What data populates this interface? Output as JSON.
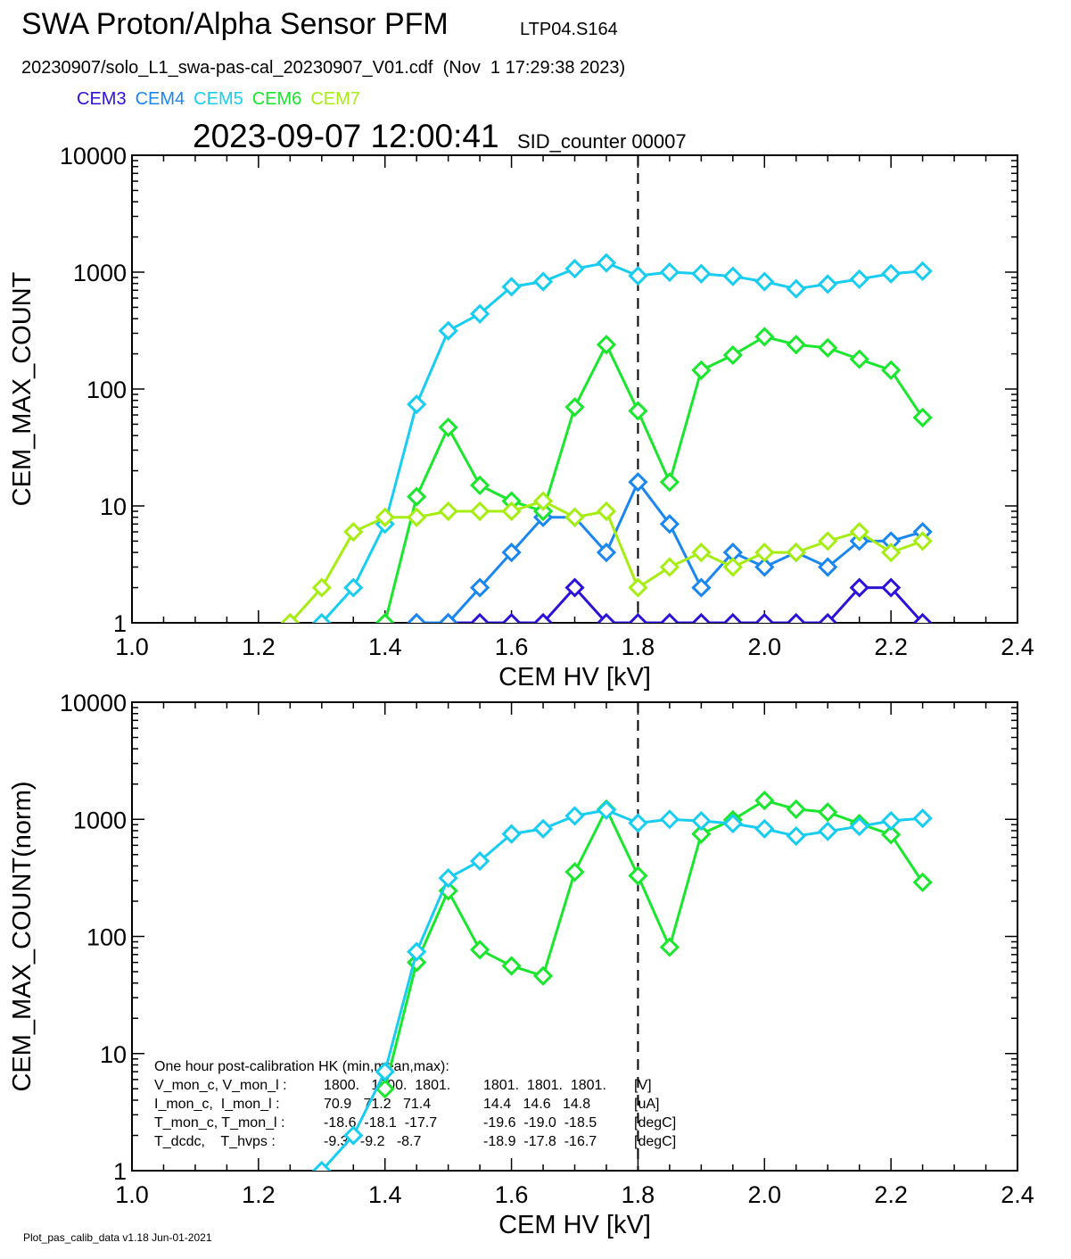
{
  "header": {
    "title": "SWA Proton/Alpha Sensor PFM",
    "subtitle": "LTP04.S164",
    "file_line": "20230907/solo_L1_swa-pas-cal_20230907_V01.cdf  (Nov  1 17:29:38 2023)",
    "timestamp": "2023-09-07 12:00:41",
    "sid": "SID_counter 00007"
  },
  "legend": [
    {
      "label": "CEM3",
      "color": "#2b12d8"
    },
    {
      "label": "CEM4",
      "color": "#1a86f0"
    },
    {
      "label": "CEM5",
      "color": "#18cdf0"
    },
    {
      "label": "CEM6",
      "color": "#19e62c"
    },
    {
      "label": "CEM7",
      "color": "#a6ee12"
    }
  ],
  "footer": "Plot_pas_calib_data v1.18 Jun-01-2021",
  "chart_data": [
    {
      "type": "line",
      "xlabel": "CEM HV [kV]",
      "ylabel": "CEM_MAX_COUNT",
      "xlim": [
        1.0,
        2.4
      ],
      "ylim": [
        1,
        10000
      ],
      "yscale": "log",
      "xticks": [
        "1.0",
        "1.2",
        "1.4",
        "1.6",
        "1.8",
        "2.0",
        "2.2",
        "2.4"
      ],
      "yticks": [
        "1",
        "10",
        "100",
        "1000",
        "10000"
      ],
      "vline": 1.8,
      "marker": "diamond",
      "series": [
        {
          "name": "CEM3",
          "color": "#2b12d8",
          "x": [
            1.45,
            1.5,
            1.55,
            1.6,
            1.65,
            1.7,
            1.75,
            1.8,
            1.85,
            1.9,
            1.95,
            2.0,
            2.05,
            2.1,
            2.15,
            2.2,
            2.25
          ],
          "y": [
            1,
            1,
            1,
            1,
            1,
            2,
            1,
            1,
            1,
            1,
            1,
            1,
            1,
            1,
            2,
            2,
            1
          ]
        },
        {
          "name": "CEM4",
          "color": "#1a86f0",
          "x": [
            1.45,
            1.5,
            1.55,
            1.6,
            1.65,
            1.7,
            1.75,
            1.8,
            1.85,
            1.9,
            1.95,
            2.0,
            2.05,
            2.1,
            2.15,
            2.2,
            2.25
          ],
          "y": [
            1,
            1,
            2,
            4,
            8,
            8,
            4,
            16,
            7,
            2,
            4,
            3,
            4,
            3,
            5,
            5,
            6
          ]
        },
        {
          "name": "CEM5",
          "color": "#18cdf0",
          "x": [
            1.3,
            1.35,
            1.4,
            1.45,
            1.5,
            1.55,
            1.6,
            1.65,
            1.7,
            1.75,
            1.8,
            1.85,
            1.9,
            1.95,
            2.0,
            2.05,
            2.1,
            2.15,
            2.2,
            2.25
          ],
          "y": [
            1,
            2,
            7,
            74,
            315,
            440,
            750,
            830,
            1070,
            1200,
            930,
            1000,
            970,
            920,
            830,
            720,
            790,
            870,
            970,
            1020
          ]
        },
        {
          "name": "CEM6",
          "color": "#19e62c",
          "x": [
            1.4,
            1.45,
            1.5,
            1.55,
            1.6,
            1.65,
            1.7,
            1.75,
            1.8,
            1.85,
            1.9,
            1.95,
            2.0,
            2.05,
            2.1,
            2.15,
            2.2,
            2.25
          ],
          "y": [
            1,
            12,
            47,
            15,
            11,
            9,
            70,
            240,
            65,
            16,
            145,
            195,
            280,
            240,
            225,
            180,
            145,
            57
          ]
        },
        {
          "name": "CEM7",
          "color": "#a6ee12",
          "x": [
            1.25,
            1.3,
            1.35,
            1.4,
            1.45,
            1.5,
            1.55,
            1.6,
            1.65,
            1.7,
            1.75,
            1.8,
            1.85,
            1.9,
            1.95,
            2.0,
            2.05,
            2.1,
            2.15,
            2.2,
            2.25
          ],
          "y": [
            1,
            2,
            6,
            8,
            8,
            9,
            9,
            9,
            11,
            8,
            9,
            2,
            3,
            4,
            3,
            4,
            4,
            5,
            6,
            4,
            5
          ]
        }
      ]
    },
    {
      "type": "line",
      "xlabel": "CEM HV [kV]",
      "ylabel": "CEM_MAX_COUNT(norm)",
      "xlim": [
        1.0,
        2.4
      ],
      "ylim": [
        1,
        10000
      ],
      "yscale": "log",
      "xticks": [
        "1.0",
        "1.2",
        "1.4",
        "1.6",
        "1.8",
        "2.0",
        "2.2",
        "2.4"
      ],
      "yticks": [
        "1",
        "10",
        "100",
        "1000",
        "10000"
      ],
      "vline": 1.8,
      "marker": "diamond",
      "series": [
        {
          "name": "CEM6",
          "color": "#19e62c",
          "x": [
            1.4,
            1.45,
            1.5,
            1.55,
            1.6,
            1.65,
            1.7,
            1.75,
            1.8,
            1.85,
            1.9,
            1.95,
            2.0,
            2.05,
            2.1,
            2.15,
            2.2,
            2.25
          ],
          "y": [
            5,
            60,
            245,
            77,
            56,
            46,
            355,
            1220,
            330,
            81,
            750,
            990,
            1450,
            1220,
            1150,
            920,
            740,
            290
          ]
        },
        {
          "name": "CEM5",
          "color": "#18cdf0",
          "x": [
            1.3,
            1.35,
            1.4,
            1.45,
            1.5,
            1.55,
            1.6,
            1.65,
            1.7,
            1.75,
            1.8,
            1.85,
            1.9,
            1.95,
            2.0,
            2.05,
            2.1,
            2.15,
            2.2,
            2.25
          ],
          "y": [
            1,
            2,
            7,
            74,
            315,
            440,
            750,
            830,
            1070,
            1200,
            930,
            1000,
            970,
            920,
            830,
            720,
            790,
            870,
            970,
            1020
          ]
        }
      ],
      "annotation": {
        "heading": "One hour post-calibration HK (min,mean,max):",
        "rows": [
          {
            "label": "V_mon_c, V_mon_l :",
            "set1": "1800.   1800.  1801.",
            "set2": "1801.  1801.  1801.",
            "unit": "[V]"
          },
          {
            "label": "I_mon_c,  I_mon_l :",
            "set1": "70.9   71.2   71.4",
            "set2": "14.4   14.6   14.8",
            "unit": "[uA]"
          },
          {
            "label": "T_mon_c, T_mon_l :",
            "set1": "-18.6  -18.1  -17.7",
            "set2": "-19.6  -19.0  -18.5",
            "unit": "[degC]"
          },
          {
            "label": "T_dcdc,    T_hvps :",
            "set1": "-9.3   -9.2   -8.7",
            "set2": "-18.9  -17.8  -16.7",
            "unit": "[degC]"
          }
        ]
      }
    }
  ]
}
